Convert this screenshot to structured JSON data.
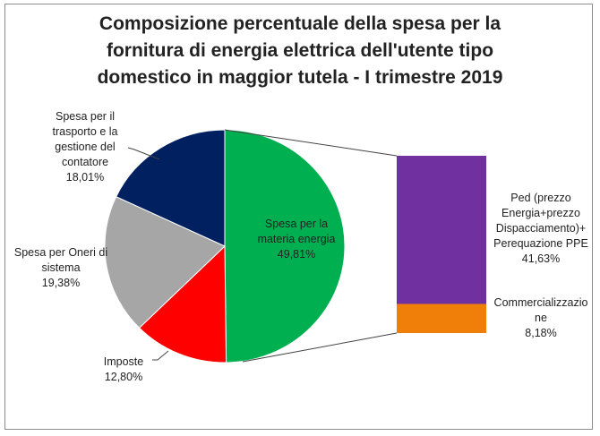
{
  "chart_data": {
    "type": "pie",
    "subtype": "bar-of-pie",
    "title": [
      "Composizione percentuale della spesa per la",
      "fornitura di energia elettrica dell'utente tipo",
      "domestico in maggior tutela - I trimestre 2019"
    ],
    "pie": [
      {
        "name": [
          "Spesa per la",
          "materia energia"
        ],
        "value_label": "49,81%",
        "value": 49.81,
        "color": "#00b050"
      },
      {
        "name": [
          "Imposte"
        ],
        "value_label": "12,80%",
        "value": 12.8,
        "color": "#ff0000"
      },
      {
        "name": [
          "Spesa per Oneri di",
          "sistema"
        ],
        "value_label": "19,38%",
        "value": 19.38,
        "color": "#a6a6a6"
      },
      {
        "name": [
          "Spesa per il",
          "trasporto e la",
          "gestione del",
          "contatore"
        ],
        "value_label": "18,01%",
        "value": 18.01,
        "color": "#002060"
      }
    ],
    "bar": [
      {
        "name": [
          "Ped (prezzo",
          "Energia+prezzo",
          "Dispacciamento)+",
          "Perequazione PPE"
        ],
        "value_label": "41,63%",
        "value": 41.63,
        "color": "#7030a0"
      },
      {
        "name": [
          "Commercializzazio",
          "ne"
        ],
        "value_label": "8,18%",
        "value": 8.18,
        "color": "#f07f09"
      }
    ]
  }
}
